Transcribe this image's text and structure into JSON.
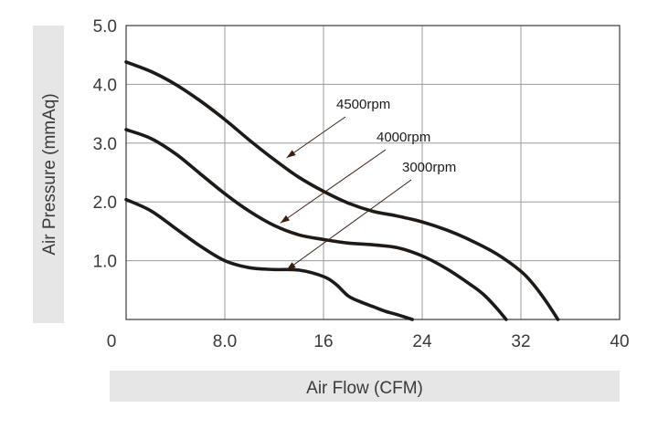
{
  "chart_data": {
    "type": "line",
    "xlabel": "Air Flow (CFM)",
    "ylabel": "Air Pressure (mmAq)",
    "xlim": [
      0,
      40
    ],
    "ylim": [
      0,
      5
    ],
    "x_ticks": [
      "0",
      "8.0",
      "16",
      "24",
      "32",
      "40"
    ],
    "y_ticks": [
      "1.0",
      "2.0",
      "3.0",
      "4.0",
      "5.0"
    ],
    "grid": true,
    "colors": {
      "curve": "#1e1a17",
      "grid": "#9a9a9a",
      "label_bg": "#e6e6e6",
      "arrow": "#3a1e12"
    },
    "series": [
      {
        "name": "4500rpm",
        "x": [
          0,
          2,
          4,
          6,
          8,
          10,
          12,
          14,
          16,
          18,
          20,
          22,
          24,
          26,
          28,
          30,
          32,
          33,
          34,
          35
        ],
        "y": [
          4.38,
          4.22,
          4.0,
          3.72,
          3.4,
          3.05,
          2.72,
          2.42,
          2.18,
          1.98,
          1.84,
          1.76,
          1.66,
          1.52,
          1.34,
          1.12,
          0.82,
          0.6,
          0.32,
          0.0
        ]
      },
      {
        "name": "4000rpm",
        "x": [
          0,
          2,
          4,
          6,
          8,
          10,
          12,
          14,
          16,
          18,
          20,
          22,
          24,
          26,
          28,
          29,
          30,
          30.8
        ],
        "y": [
          3.23,
          3.08,
          2.82,
          2.48,
          2.14,
          1.84,
          1.6,
          1.44,
          1.36,
          1.3,
          1.27,
          1.22,
          1.08,
          0.86,
          0.58,
          0.42,
          0.2,
          0.0
        ]
      },
      {
        "name": "3000rpm",
        "x": [
          0,
          2,
          4,
          6,
          8,
          10,
          12,
          14,
          16,
          17,
          18,
          19,
          20,
          21,
          22,
          23.2
        ],
        "y": [
          2.04,
          1.85,
          1.55,
          1.25,
          1.0,
          0.88,
          0.85,
          0.84,
          0.73,
          0.6,
          0.4,
          0.3,
          0.22,
          0.14,
          0.08,
          0.0
        ]
      }
    ],
    "annotations": [
      {
        "text": "4500rpm",
        "point_x": 13.0,
        "point_y": 2.75
      },
      {
        "text": "4000rpm",
        "point_x": 12.5,
        "point_y": 1.64
      },
      {
        "text": "3000rpm",
        "point_x": 13.0,
        "point_y": 0.84
      }
    ]
  }
}
